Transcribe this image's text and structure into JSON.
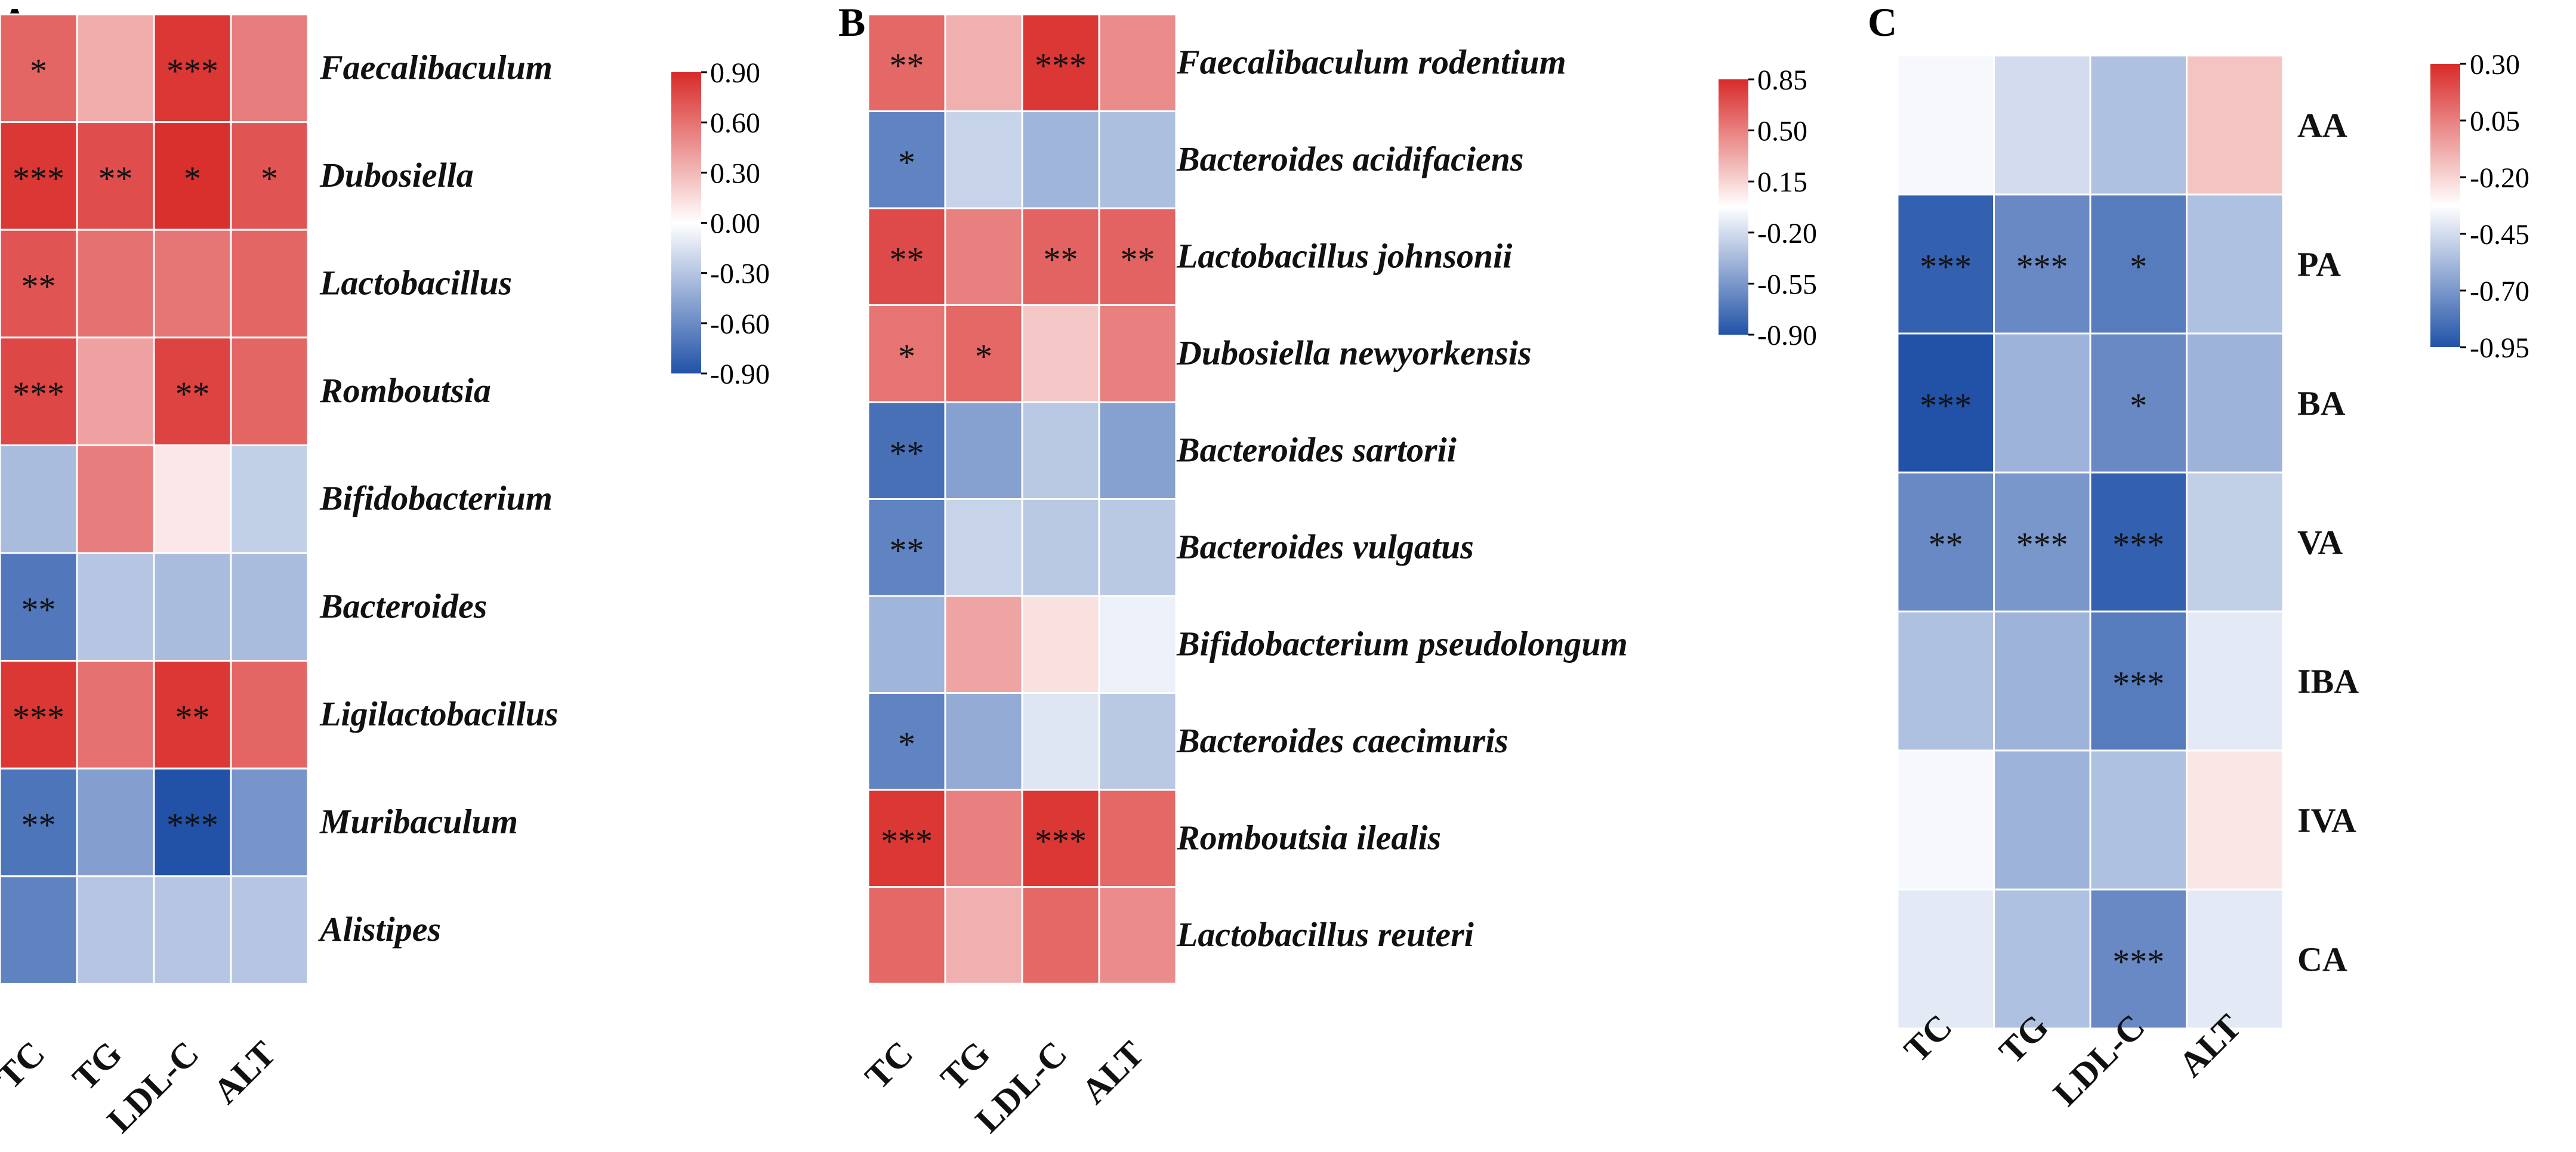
{
  "chart_data": [
    {
      "type": "heatmap",
      "panel": "A",
      "columns": [
        "TC",
        "TG",
        "LDL-C",
        "ALT"
      ],
      "rows": [
        "Faecalibaculum",
        "Dubosiella",
        "Lactobacillus",
        "Romboutsia",
        "Bifidobacterium",
        "Bacteroides",
        "Ligilactobacillus",
        "Muribaculum",
        "Alistipes"
      ],
      "row_style": "italic",
      "values": [
        [
          0.65,
          0.35,
          0.85,
          0.55
        ],
        [
          0.85,
          0.75,
          0.88,
          0.72
        ],
        [
          0.72,
          0.6,
          0.58,
          0.65
        ],
        [
          0.78,
          0.4,
          0.8,
          0.65
        ],
        [
          -0.35,
          0.55,
          0.1,
          -0.25
        ],
        [
          -0.7,
          -0.3,
          -0.35,
          -0.35
        ],
        [
          0.85,
          0.6,
          0.85,
          0.65
        ],
        [
          -0.72,
          -0.5,
          -0.9,
          -0.55
        ],
        [
          -0.65,
          -0.3,
          -0.3,
          -0.3
        ]
      ],
      "significance": [
        [
          "*",
          "",
          "***",
          ""
        ],
        [
          "***",
          "**",
          "*",
          "*"
        ],
        [
          "**",
          "",
          "",
          ""
        ],
        [
          "***",
          "",
          "**",
          ""
        ],
        [
          "",
          "",
          "",
          ""
        ],
        [
          "**",
          "",
          "",
          ""
        ],
        [
          "***",
          "",
          "**",
          ""
        ],
        [
          "**",
          "",
          "***",
          ""
        ],
        [
          "",
          "",
          "",
          ""
        ]
      ],
      "colorbar": {
        "min": -0.9,
        "max": 0.9,
        "ticks": [
          "0.90",
          "0.60",
          "0.30",
          "0.00",
          "-0.30",
          "-0.60",
          "-0.90"
        ]
      }
    },
    {
      "type": "heatmap",
      "panel": "B",
      "columns": [
        "TC",
        "TG",
        "LDL-C",
        "ALT"
      ],
      "rows": [
        "Faecalibaculum rodentium",
        "Bacteroides acidifaciens",
        "Lactobacillus johnsonii",
        "Dubosiella newyorkensis",
        "Bacteroides sartorii",
        "Bacteroides vulgatus",
        "Bifidobacterium pseudolongum",
        "Bacteroides caecimuris",
        "Romboutsia ilealis",
        "Lactobacillus reuteri"
      ],
      "row_style": "italic",
      "values": [
        [
          0.6,
          0.3,
          0.8,
          0.45
        ],
        [
          -0.65,
          -0.25,
          -0.4,
          -0.35
        ],
        [
          0.72,
          0.5,
          0.62,
          0.62
        ],
        [
          0.55,
          0.6,
          0.2,
          0.5
        ],
        [
          -0.75,
          -0.5,
          -0.3,
          -0.5
        ],
        [
          -0.65,
          -0.25,
          -0.3,
          -0.3
        ],
        [
          -0.4,
          0.35,
          0.1,
          -0.1
        ],
        [
          -0.65,
          -0.45,
          -0.15,
          -0.3
        ],
        [
          0.8,
          0.5,
          0.8,
          0.6
        ],
        [
          0.6,
          0.3,
          0.6,
          0.45
        ]
      ],
      "significance": [
        [
          "**",
          "",
          "***",
          ""
        ],
        [
          "*",
          "",
          "",
          ""
        ],
        [
          "**",
          "",
          "**",
          "**"
        ],
        [
          "*",
          "*",
          "",
          ""
        ],
        [
          "**",
          "",
          "",
          ""
        ],
        [
          "**",
          "",
          "",
          ""
        ],
        [
          "",
          "",
          "",
          ""
        ],
        [
          "*",
          "",
          "",
          ""
        ],
        [
          "***",
          "",
          "***",
          ""
        ],
        [
          "",
          "",
          "",
          ""
        ]
      ],
      "colorbar": {
        "min": -0.9,
        "max": 0.85,
        "ticks": [
          "0.85",
          "0.50",
          "0.15",
          "-0.20",
          "-0.55",
          "-0.90"
        ]
      }
    },
    {
      "type": "heatmap",
      "panel": "C",
      "columns": [
        "TC",
        "TG",
        "LDL-C",
        "ALT"
      ],
      "rows": [
        "AA",
        "PA",
        "BA",
        "VA",
        "IBA",
        "IVA",
        "CA"
      ],
      "row_style": "normal",
      "values": [
        [
          -0.35,
          -0.45,
          -0.55,
          -0.15
        ],
        [
          -0.9,
          -0.75,
          -0.8,
          -0.55
        ],
        [
          -0.95,
          -0.6,
          -0.75,
          -0.6
        ],
        [
          -0.75,
          -0.7,
          -0.9,
          -0.5
        ],
        [
          -0.55,
          -0.6,
          -0.8,
          -0.4
        ],
        [
          -0.35,
          -0.6,
          -0.55,
          -0.25
        ],
        [
          -0.4,
          -0.55,
          -0.75,
          -0.4
        ]
      ],
      "significance": [
        [
          "",
          "",
          "",
          ""
        ],
        [
          "***",
          "***",
          "*",
          ""
        ],
        [
          "***",
          "",
          "*",
          ""
        ],
        [
          "**",
          "***",
          "***",
          ""
        ],
        [
          "",
          "",
          "***",
          ""
        ],
        [
          "",
          "",
          "",
          ""
        ],
        [
          "",
          "",
          "***",
          ""
        ]
      ],
      "colorbar": {
        "min": -0.95,
        "max": 0.3,
        "ticks": [
          "0.30",
          "0.05",
          "-0.20",
          "-0.45",
          "-0.70",
          "-0.95"
        ]
      }
    }
  ]
}
